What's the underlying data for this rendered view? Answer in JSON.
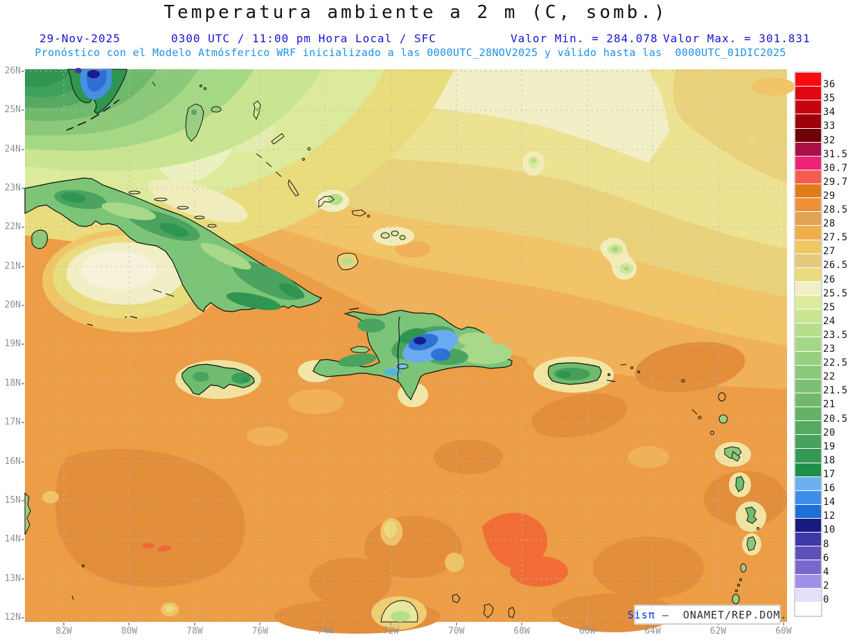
{
  "header": {
    "title": "Temperatura ambiente a 2 m (C, somb.)",
    "date": "29-Nov-2025",
    "time_line": "0300 UTC / 11:00 pm Hora Local / SFC",
    "valor_min": "Valor Min. = 284.078",
    "valor_max": "Valor Max. = 301.831",
    "forecast_line": "Pronóstico con el Modelo Atmósferico WRF inicializado a las 0000UTC_28NOV2025 y válido hasta las  0000UTC_01DIC2025"
  },
  "axes": {
    "lat_labels": [
      "26N",
      "25N",
      "24N",
      "23N",
      "22N",
      "21N",
      "20N",
      "19N",
      "18N",
      "17N",
      "16N",
      "15N",
      "14N",
      "13N",
      "12N"
    ],
    "lon_labels": [
      "82W",
      "80W",
      "78W",
      "76W",
      "74W",
      "72W",
      "70W",
      "68W",
      "66W",
      "64W",
      "62W",
      "60W"
    ]
  },
  "colorbar": {
    "boundary_labels": [
      "36",
      "35",
      "34",
      "33",
      "32",
      "31.5",
      "30.7",
      "29.7",
      "29",
      "28.5",
      "28",
      "27.5",
      "27",
      "26.5",
      "26",
      "25.5",
      "25",
      "24",
      "23.5",
      "23",
      "22.5",
      "22",
      "21.5",
      "21",
      "20.5",
      "20",
      "19",
      "18",
      "17",
      "16",
      "14",
      "12",
      "10",
      "8",
      "6",
      "4",
      "2",
      "0"
    ],
    "cell_colors": [
      "#fb0b10",
      "#e10511",
      "#c4030f",
      "#a0020c",
      "#6f0109",
      "#a81048",
      "#ee2277",
      "#f85c4e",
      "#e07c18",
      "#ef9138",
      "#dfa257",
      "#f0ad4c",
      "#f0c765",
      "#e6c87e",
      "#e8dc7c",
      "#f2efc6",
      "#dcea9c",
      "#c9e591",
      "#b5df8b",
      "#a5d884",
      "#97d07e",
      "#8cc879",
      "#7ec073",
      "#72b96d",
      "#65b167",
      "#55a961",
      "#45a15c",
      "#349955",
      "#1e9148",
      "#6cb0f2",
      "#3e8ee9",
      "#1d70d8",
      "#191980",
      "#3f37a5",
      "#5c51b8",
      "#7a68cc",
      "#9f90e5",
      "#e3e0fa",
      "#ffffff"
    ]
  },
  "watermark": {
    "brand": "Sisπ",
    "text": " –  ONAMET/REP.DOM."
  },
  "colors": {
    "header_blue": "#1315cf",
    "forecast_blue": "#1e8fe8",
    "axis_gray": "#8d9297",
    "ocean_warm_orange": "#ec9d45",
    "land_green": "#7cc478",
    "cold_core_navy": "#1a1c88"
  }
}
